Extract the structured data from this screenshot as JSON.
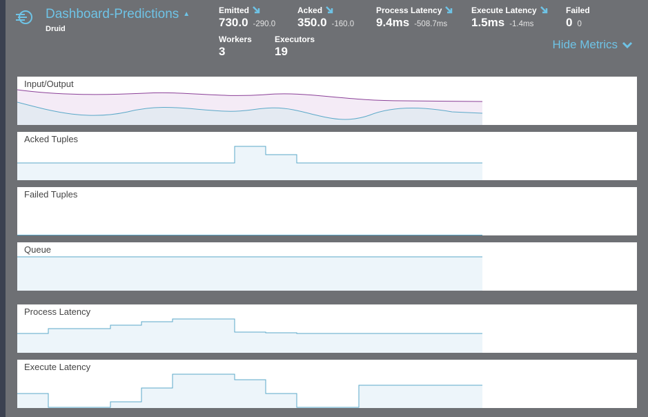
{
  "topology": {
    "name": "Dashboard-Predictions",
    "subtitle": "Druid"
  },
  "metrics": {
    "emitted": {
      "label": "Emitted",
      "value": "730.0",
      "delta": "-290.0"
    },
    "acked": {
      "label": "Acked",
      "value": "350.0",
      "delta": "-160.0"
    },
    "process_latency": {
      "label": "Process Latency",
      "value": "9.4ms",
      "delta": "-508.7ms"
    },
    "execute_latency": {
      "label": "Execute Latency",
      "value": "1.5ms",
      "delta": "-1.4ms"
    },
    "failed": {
      "label": "Failed",
      "value": "0",
      "delta": "0"
    },
    "workers": {
      "label": "Workers",
      "value": "3"
    },
    "executors": {
      "label": "Executors",
      "value": "19"
    }
  },
  "hide_metrics_label": "Hide Metrics",
  "colors": {
    "accent": "#6ec3e6",
    "line": "#5aa8c8",
    "fill": "#edf5fa",
    "purple": "#8a3f97"
  },
  "charts": [
    {
      "title": "Input/Output"
    },
    {
      "title": "Acked Tuples"
    },
    {
      "title": "Failed Tuples"
    },
    {
      "title": "Queue"
    },
    {
      "title": "Process Latency"
    },
    {
      "title": "Execute Latency"
    }
  ]
}
